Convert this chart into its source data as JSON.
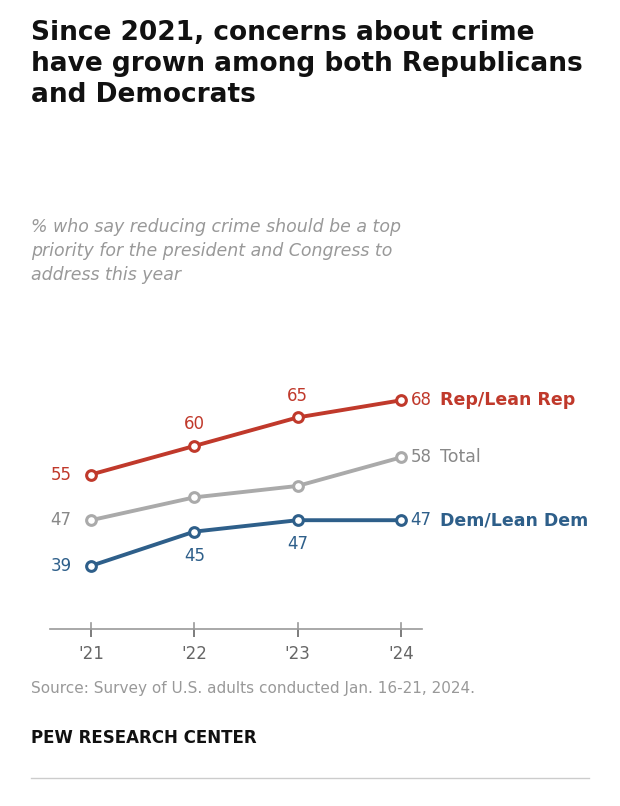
{
  "title": "Since 2021, concerns about crime\nhave grown among both Republicans\nand Democrats",
  "subtitle": "% who say reducing crime should be a top\npriority for the president and Congress to\naddress this year",
  "years": [
    2021,
    2022,
    2023,
    2024
  ],
  "year_labels": [
    "'21",
    "'22",
    "'23",
    "'24"
  ],
  "rep_values": [
    55,
    60,
    65,
    68
  ],
  "total_values": [
    47,
    51,
    53,
    58
  ],
  "dem_values": [
    39,
    45,
    47,
    47
  ],
  "rep_color": "#c0392b",
  "total_color": "#aaaaaa",
  "dem_color": "#2e5f8a",
  "rep_label": "Rep/Lean Rep",
  "total_label": "Total",
  "dem_label": "Dem/Lean Dem",
  "source_text": "Source: Survey of U.S. adults conducted Jan. 16-21, 2024.",
  "footer_text": "PEW RESEARCH CENTER",
  "background_color": "#ffffff",
  "title_fontsize": 19,
  "subtitle_fontsize": 12.5,
  "annotation_fontsize": 12,
  "legend_fontsize": 12.5,
  "source_fontsize": 11,
  "footer_fontsize": 12
}
